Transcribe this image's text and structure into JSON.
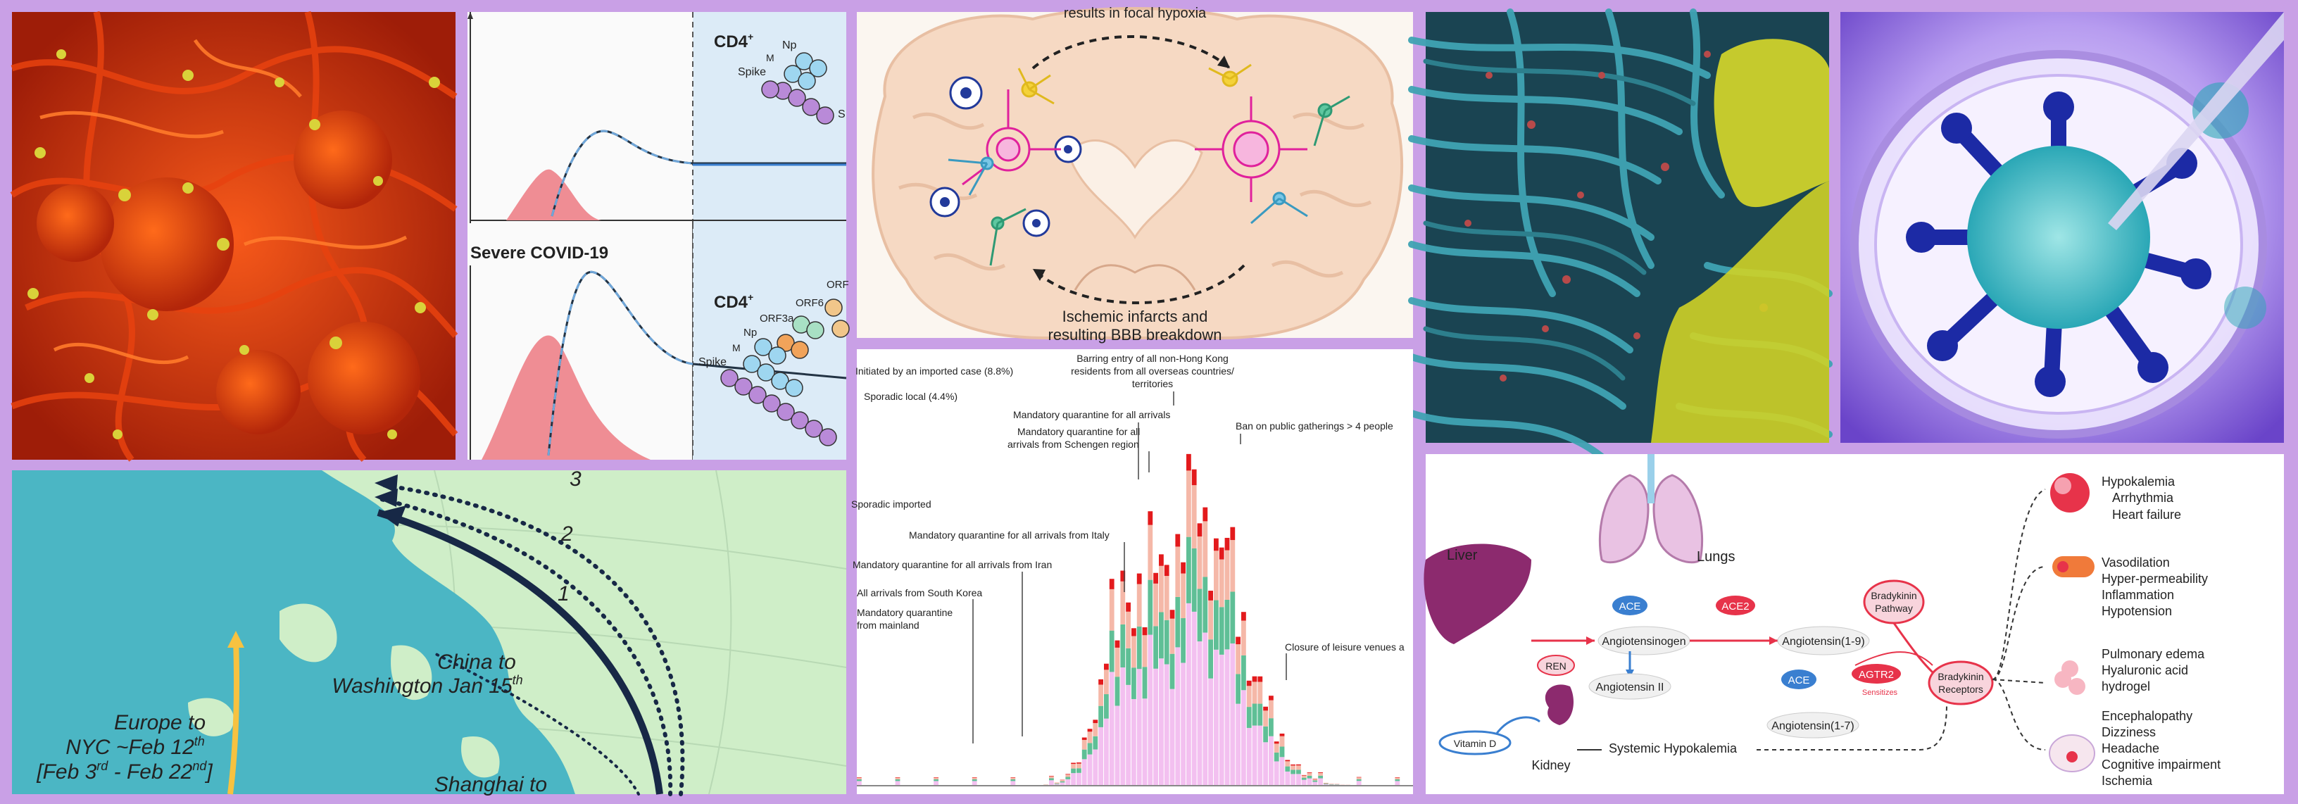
{
  "tcell": {
    "cd4_top": "CD4",
    "sup": "+",
    "np": "Np",
    "m": "M",
    "spike": "Spike",
    "s": "S",
    "severe_title": "Severe COVID-19",
    "cd4_bottom": "CD4",
    "orf3a": "ORF3a",
    "orf6": "ORF6",
    "orf": "ORF",
    "np2": "Np",
    "m2": "M",
    "spike2": "Spike"
  },
  "brain": {
    "top_caption": "results in focal hypoxia",
    "bottom_caption_1": "Ischemic infarcts and",
    "bottom_caption_2": "resulting BBB breakdown"
  },
  "map": {
    "route_numbers": [
      "3",
      "2",
      "1"
    ],
    "china_label_1": "China to",
    "china_label_2": "Washington Jan 15",
    "th": "th",
    "europe_1": "Europe to",
    "europe_2": "NYC ~Feb 12",
    "europe_3": "[Feb 3",
    "europe_3b": "rd",
    "europe_3c": " - Feb 22",
    "europe_3d": "nd",
    "europe_3e": "]",
    "shanghai": "Shanghai to"
  },
  "hk_chart": {
    "legend_imported": "Initiated by an imported case (8.8%)",
    "legend_local": "Sporadic local (4.4%)",
    "sporadic_imported": "Sporadic imported",
    "annotations": [
      "Barring entry of all non-Hong Kong",
      "residents from all overseas countries/",
      "territories",
      "Mandatory quarantine for all arrivals",
      "Mandatory quarantine for all",
      "arrivals from Schengen region",
      "Ban on public gatherings > 4 people",
      "Mandatory quarantine for all arrivals from Italy",
      "Mandatory quarantine for all arrivals from Iran",
      "All arrivals from South Korea",
      "Mandatory quarantine",
      "from mainland",
      "Closure of leisure venues a"
    ]
  },
  "raas": {
    "liver": "Liver",
    "ace": "ACE",
    "ace2": "ACE2",
    "lungs": "Lungs",
    "angiotensinogen": "Angiotensinogen",
    "angiotensin19": "Angiotensin(1-9)",
    "angiotensin2": "Angiotensin II",
    "angiotensin17": "Angiotensin(1-7)",
    "ace_b": "ACE",
    "agtr2": "AGTR2",
    "sensitizes": "Sensitizes",
    "bradykinin_pathway_1": "Bradykinin",
    "bradykinin_pathway_2": "Pathway",
    "bradykinin_receptors_1": "Bradykinin",
    "bradykinin_receptors_2": "Receptors",
    "ren": "REN",
    "vitamin_d": "Vitamin D",
    "kidney": "Kidney",
    "systemic_hypokalemia": "Systemic Hypokalemia",
    "effects": [
      [
        "Hypokalemia",
        "Arrhythmia",
        "Heart failure"
      ],
      [
        "Vasodilation",
        "Hyper-permeability",
        "Inflammation",
        "Hypotension"
      ],
      [
        "Pulmonary edema",
        "Hyaluronic acid",
        "hydrogel"
      ],
      [
        "Encephalopathy",
        "Dizziness",
        "Headache",
        "Cognitive impairment",
        "Ischemia"
      ]
    ]
  }
}
